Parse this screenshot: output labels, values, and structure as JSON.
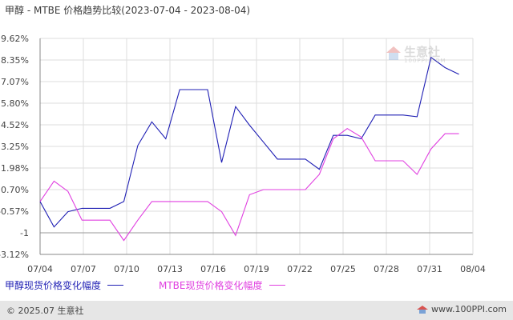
{
  "chart_data": {
    "type": "line",
    "title": "甲醇 - MTBE 价格趋势比较(2023-07-04 - 2023-08-04)",
    "x_ticks": [
      "07/04",
      "07/07",
      "07/10",
      "07/13",
      "07/16",
      "07/19",
      "07/22",
      "07/25",
      "07/28",
      "07/31",
      "08/04"
    ],
    "y_ticks": [
      "9.62%",
      "8.35%",
      "7.07%",
      "5.80%",
      "4.52%",
      "3.25%",
      "1.98%",
      "0.70%",
      "-0.57%",
      "-1",
      "-3.12%"
    ],
    "series": [
      {
        "name": "甲醇现货价格变化幅度",
        "color": "#1f1fb4",
        "x": [
          "07/04",
          "07/05",
          "07/06",
          "07/07",
          "07/08",
          "07/09",
          "07/10",
          "07/11",
          "07/12",
          "07/13",
          "07/14",
          "07/15",
          "07/16",
          "07/17",
          "07/18",
          "07/19",
          "07/20",
          "07/21",
          "07/22",
          "07/23",
          "07/24",
          "07/25",
          "07/26",
          "07/27",
          "07/28",
          "07/29",
          "07/30",
          "07/31",
          "08/01",
          "08/02",
          "08/03"
        ],
        "values": [
          0.0,
          -1.5,
          -0.6,
          -0.4,
          -0.4,
          -0.4,
          0.0,
          3.3,
          4.7,
          3.7,
          6.6,
          6.6,
          6.6,
          2.3,
          5.6,
          4.5,
          3.5,
          2.5,
          2.5,
          2.5,
          1.9,
          3.9,
          3.9,
          3.7,
          5.1,
          5.1,
          5.1,
          5.0,
          8.5,
          7.9,
          7.5
        ]
      },
      {
        "name": "MTBE现货价格变化幅度",
        "color": "#e040e0",
        "x": [
          "07/04",
          "07/05",
          "07/06",
          "07/07",
          "07/08",
          "07/09",
          "07/10",
          "07/11",
          "07/12",
          "07/13",
          "07/14",
          "07/15",
          "07/16",
          "07/17",
          "07/18",
          "07/19",
          "07/20",
          "07/21",
          "07/22",
          "07/23",
          "07/24",
          "07/25",
          "07/26",
          "07/27",
          "07/28",
          "07/29",
          "07/30",
          "07/31",
          "08/01",
          "08/02",
          "08/03"
        ],
        "values": [
          0.0,
          1.2,
          0.6,
          -1.1,
          -1.1,
          -1.1,
          -2.3,
          -1.1,
          0.0,
          0.0,
          0.0,
          0.0,
          0.0,
          -0.6,
          -2.0,
          0.4,
          0.7,
          0.7,
          0.7,
          0.7,
          1.6,
          3.7,
          4.3,
          3.8,
          2.4,
          2.4,
          2.4,
          1.6,
          3.1,
          4.0,
          4.0
        ]
      }
    ],
    "ylim": [
      -3.12,
      9.62
    ],
    "grid": true,
    "legend_position": "bottom"
  },
  "watermark": {
    "text": "生意社",
    "subtext": "100PPI.COM"
  },
  "footer": {
    "copyright": "© 2025.07 生意社",
    "site": "www.100PPI.com"
  },
  "colors": {
    "axis": "#888888",
    "grid": "#dddddd",
    "footer_bg": "#e6e6e6"
  }
}
